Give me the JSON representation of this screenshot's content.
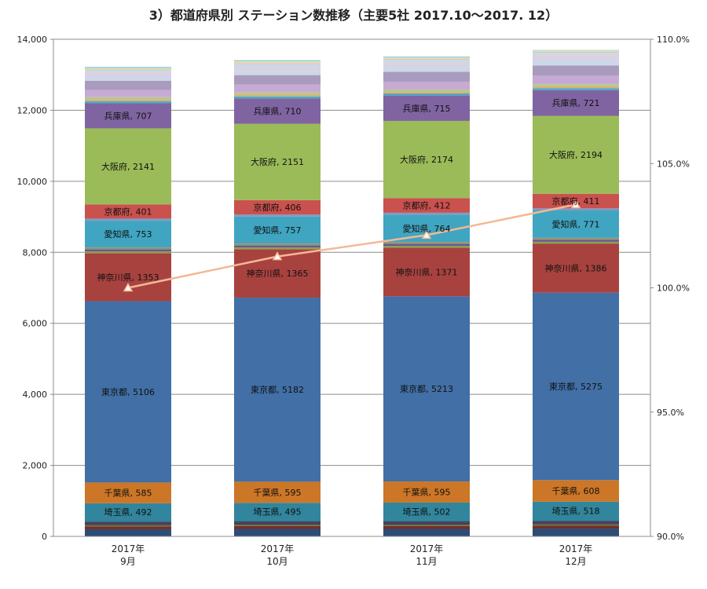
{
  "chart_data": {
    "type": "bar",
    "title": "3）都道府県別 ステーション数推移（主要5社 2017.10～2017. 12）",
    "categories": [
      [
        "2017年",
        "9月"
      ],
      [
        "2017年",
        "10月"
      ],
      [
        "2017年",
        "11月"
      ],
      [
        "2017年",
        "12月"
      ]
    ],
    "ylim": [
      0,
      14000
    ],
    "y2lim": [
      0.9,
      1.1
    ],
    "yticks": [
      "0",
      "2,000",
      "4,000",
      "6,000",
      "8,000",
      "10,000",
      "12,000",
      "14,000"
    ],
    "y2ticks": [
      "90.0%",
      "95.0%",
      "100.0%",
      "105.0%",
      "110.0%"
    ],
    "stacked": true,
    "series": [
      {
        "name": "",
        "color": "#2c4d75",
        "values": [
          200,
          210,
          210,
          220
        ]
      },
      {
        "name": "",
        "color": "#772c2a",
        "values": [
          80,
          80,
          80,
          80
        ]
      },
      {
        "name": "",
        "color": "#5f7530",
        "values": [
          40,
          40,
          40,
          40
        ]
      },
      {
        "name": "",
        "color": "#4d3b62",
        "values": [
          80,
          80,
          80,
          80
        ]
      },
      {
        "name": "",
        "color": "#276a7c",
        "values": [
          40,
          40,
          40,
          40
        ]
      },
      {
        "name": "埼玉県",
        "color": "#31859c",
        "values": [
          492,
          495,
          502,
          518
        ],
        "labels": [
          "埼玉県, 492",
          "埼玉県, 495",
          "埼玉県, 502",
          "埼玉県, 518"
        ]
      },
      {
        "name": "千葉県",
        "color": "#cc7627",
        "values": [
          585,
          595,
          595,
          608
        ],
        "labels": [
          "千葉県, 585",
          "千葉県, 595",
          "千葉県, 595",
          "千葉県, 608"
        ]
      },
      {
        "name": "東京都",
        "color": "#416fa6",
        "values": [
          5106,
          5182,
          5213,
          5275
        ],
        "labels": [
          "東京都, 5106",
          "東京都, 5182",
          "東京都, 5213",
          "東京都, 5275"
        ]
      },
      {
        "name": "神奈川県",
        "color": "#a8423f",
        "values": [
          1353,
          1365,
          1371,
          1386
        ],
        "labels": [
          "神奈川県, 1353",
          "神奈川県, 1365",
          "神奈川県, 1371",
          "神奈川県, 1386"
        ]
      },
      {
        "name": "",
        "color": "#86a44a",
        "values": [
          50,
          50,
          50,
          50
        ]
      },
      {
        "name": "",
        "color": "#6e548d",
        "values": [
          50,
          50,
          50,
          50
        ]
      },
      {
        "name": "",
        "color": "#3d96ae",
        "values": [
          30,
          30,
          30,
          30
        ]
      },
      {
        "name": "",
        "color": "#da8137",
        "values": [
          30,
          30,
          30,
          30
        ]
      },
      {
        "name": "愛知県",
        "color": "#40a5c0",
        "values": [
          753,
          757,
          764,
          771
        ],
        "labels": [
          "愛知県, 753",
          "愛知県, 757",
          "愛知県, 764",
          "愛知県, 771"
        ]
      },
      {
        "name": "",
        "color": "#7f9bc4",
        "values": [
          60,
          60,
          60,
          60
        ]
      },
      {
        "name": "京都府",
        "color": "#c9514e",
        "values": [
          401,
          406,
          412,
          411
        ],
        "labels": [
          "京都府, 401",
          "京都府, 406",
          "京都府, 412",
          "京都府, 411"
        ]
      },
      {
        "name": "大阪府",
        "color": "#9bbb59",
        "values": [
          2141,
          2151,
          2174,
          2194
        ],
        "labels": [
          "大阪府, 2141",
          "大阪府, 2151",
          "大阪府, 2174",
          "大阪府, 2194"
        ]
      },
      {
        "name": "兵庫県",
        "color": "#8064a2",
        "values": [
          707,
          710,
          715,
          721
        ],
        "labels": [
          "兵庫県, 707",
          "兵庫県, 710",
          "兵庫県, 715",
          "兵庫県, 721"
        ]
      },
      {
        "name": "",
        "color": "#4bacc6",
        "values": [
          60,
          60,
          60,
          60
        ]
      },
      {
        "name": "",
        "color": "#e8a56e",
        "values": [
          40,
          40,
          40,
          40
        ]
      },
      {
        "name": "",
        "color": "#b5ca88",
        "values": [
          70,
          70,
          70,
          70
        ]
      },
      {
        "name": "",
        "color": "#c6aad4",
        "values": [
          200,
          220,
          220,
          240
        ]
      },
      {
        "name": "",
        "color": "#a99bbd",
        "values": [
          260,
          270,
          280,
          290
        ]
      },
      {
        "name": "",
        "color": "#cbd8e8",
        "values": [
          100,
          120,
          130,
          140
        ]
      },
      {
        "name": "",
        "color": "#d9d2e3",
        "values": [
          160,
          170,
          170,
          180
        ]
      },
      {
        "name": "",
        "color": "#b9dde8",
        "values": [
          40,
          40,
          40,
          40
        ]
      },
      {
        "name": "",
        "color": "#f4c4a0",
        "values": [
          30,
          30,
          30,
          30
        ]
      },
      {
        "name": "",
        "color": "#d6e4b8",
        "values": [
          30,
          30,
          30,
          30
        ]
      },
      {
        "name": "",
        "color": "#92cddc",
        "values": [
          34,
          31,
          28,
          15
        ]
      }
    ],
    "line": {
      "name": "",
      "axis": "y2",
      "color": "#f4b896",
      "values": [
        1.0,
        1.0126,
        1.0212,
        1.0335
      ]
    }
  }
}
